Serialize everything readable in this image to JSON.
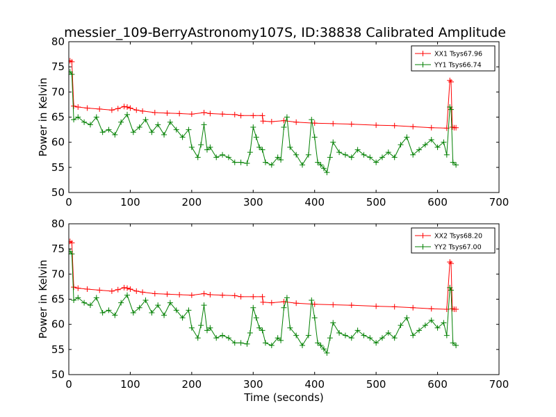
{
  "title": "messier_109-BerryAstronomy107S, ID:38838 Calibrated Amplitude",
  "colors": {
    "xx": "#ff0000",
    "yy": "#007f00",
    "axis": "#000000"
  },
  "chart_data": [
    {
      "type": "line",
      "title": "messier_109-BerryAstronomy107S, ID:38838 Calibrated Amplitude",
      "xlabel": "",
      "ylabel": "Power in Kelvin",
      "xlim": [
        0,
        700
      ],
      "ylim": [
        50,
        80
      ],
      "xticks": [
        0,
        100,
        200,
        300,
        400,
        500,
        600,
        700
      ],
      "yticks": [
        50,
        55,
        60,
        65,
        70,
        75,
        80
      ],
      "grid": false,
      "legend_position": "top-right",
      "marker": "plus",
      "series": [
        {
          "name": "XX1 Tsys67.96",
          "color": "#ff0000",
          "x": [
            2,
            5,
            8,
            15,
            30,
            50,
            70,
            80,
            90,
            95,
            100,
            110,
            120,
            140,
            160,
            180,
            200,
            220,
            230,
            250,
            270,
            280,
            300,
            315,
            316,
            330,
            350,
            370,
            400,
            430,
            460,
            500,
            530,
            560,
            590,
            615,
            620,
            622,
            624,
            627,
            630
          ],
          "values": [
            76.2,
            76.0,
            67.2,
            67.0,
            66.8,
            66.6,
            66.4,
            66.7,
            67.1,
            67.0,
            66.8,
            66.4,
            66.2,
            65.9,
            65.8,
            65.7,
            65.6,
            65.9,
            65.7,
            65.6,
            65.5,
            65.3,
            65.3,
            65.3,
            64.2,
            64.1,
            64.3,
            64.0,
            63.8,
            63.7,
            63.6,
            63.4,
            63.3,
            63.1,
            62.9,
            62.8,
            72.3,
            72.0,
            63.0,
            62.9,
            62.9
          ]
        },
        {
          "name": "YY1 Tsys66.74",
          "color": "#007f00",
          "x": [
            2,
            5,
            8,
            15,
            25,
            35,
            45,
            55,
            65,
            75,
            85,
            95,
            105,
            115,
            125,
            135,
            145,
            155,
            165,
            175,
            185,
            195,
            200,
            210,
            215,
            220,
            225,
            230,
            240,
            250,
            260,
            270,
            280,
            290,
            295,
            300,
            305,
            310,
            315,
            320,
            330,
            340,
            345,
            350,
            355,
            360,
            370,
            380,
            390,
            395,
            400,
            405,
            410,
            415,
            420,
            425,
            430,
            440,
            450,
            460,
            470,
            480,
            490,
            500,
            510,
            520,
            530,
            540,
            550,
            560,
            570,
            580,
            590,
            600,
            610,
            615,
            620,
            622,
            625,
            630
          ],
          "values": [
            74.0,
            73.5,
            64.5,
            65.0,
            64.0,
            63.5,
            65.0,
            62.0,
            62.5,
            61.5,
            64.0,
            65.5,
            62.0,
            63.0,
            64.5,
            62.0,
            63.5,
            61.5,
            64.0,
            62.5,
            61.0,
            62.5,
            59.0,
            57.0,
            59.5,
            63.5,
            58.5,
            59.0,
            57.0,
            57.5,
            57.0,
            56.0,
            56.0,
            55.8,
            58.0,
            63.0,
            61.0,
            59.0,
            58.5,
            56.0,
            55.5,
            57.0,
            56.5,
            63.0,
            65.0,
            59.0,
            57.5,
            55.5,
            57.5,
            64.5,
            61.0,
            56.0,
            55.5,
            54.8,
            54.0,
            57.0,
            60.0,
            58.0,
            57.5,
            57.0,
            58.5,
            57.5,
            57.0,
            56.0,
            57.0,
            58.0,
            57.0,
            59.5,
            61.0,
            57.5,
            58.5,
            59.5,
            60.5,
            59.0,
            60.0,
            57.5,
            67.0,
            66.5,
            56.0,
            55.5
          ]
        }
      ]
    },
    {
      "type": "line",
      "title": "",
      "xlabel": "Time (seconds)",
      "ylabel": "Power in Kelvin",
      "xlim": [
        0,
        700
      ],
      "ylim": [
        50,
        80
      ],
      "xticks": [
        0,
        100,
        200,
        300,
        400,
        500,
        600,
        700
      ],
      "yticks": [
        50,
        55,
        60,
        65,
        70,
        75,
        80
      ],
      "grid": false,
      "legend_position": "top-right",
      "marker": "plus",
      "series": [
        {
          "name": "XX2 Tsys68.20",
          "color": "#ff0000",
          "x": [
            2,
            5,
            8,
            15,
            30,
            50,
            70,
            80,
            90,
            95,
            100,
            110,
            120,
            140,
            160,
            180,
            200,
            220,
            230,
            250,
            270,
            280,
            300,
            315,
            316,
            330,
            350,
            370,
            400,
            430,
            460,
            500,
            530,
            560,
            590,
            615,
            620,
            622,
            624,
            627,
            630
          ],
          "values": [
            76.5,
            76.2,
            67.4,
            67.2,
            67.0,
            66.8,
            66.6,
            66.9,
            67.3,
            67.2,
            67.0,
            66.6,
            66.4,
            66.1,
            66.0,
            65.9,
            65.8,
            66.1,
            65.9,
            65.8,
            65.7,
            65.5,
            65.5,
            65.5,
            64.4,
            64.3,
            64.5,
            64.2,
            64.0,
            63.9,
            63.8,
            63.6,
            63.5,
            63.3,
            63.1,
            63.0,
            72.4,
            72.1,
            63.1,
            63.0,
            63.0
          ]
        },
        {
          "name": "YY2 Tsys67.00",
          "color": "#007f00",
          "x": [
            2,
            5,
            8,
            15,
            25,
            35,
            45,
            55,
            65,
            75,
            85,
            95,
            105,
            115,
            125,
            135,
            145,
            155,
            165,
            175,
            185,
            195,
            200,
            210,
            215,
            220,
            225,
            230,
            240,
            250,
            260,
            270,
            280,
            290,
            295,
            300,
            305,
            310,
            315,
            320,
            330,
            340,
            345,
            350,
            355,
            360,
            370,
            380,
            390,
            395,
            400,
            405,
            410,
            415,
            420,
            425,
            430,
            440,
            450,
            460,
            470,
            480,
            490,
            500,
            510,
            520,
            530,
            540,
            550,
            560,
            570,
            580,
            590,
            600,
            610,
            615,
            620,
            622,
            625,
            630
          ],
          "values": [
            74.5,
            74.0,
            64.8,
            65.3,
            64.3,
            63.8,
            65.3,
            62.3,
            62.8,
            61.8,
            64.3,
            65.8,
            62.3,
            63.3,
            64.8,
            62.3,
            63.8,
            61.8,
            64.3,
            62.8,
            61.3,
            62.8,
            59.3,
            57.3,
            59.8,
            63.8,
            58.8,
            59.3,
            57.3,
            57.8,
            57.3,
            56.3,
            56.3,
            56.1,
            58.3,
            63.3,
            61.3,
            59.3,
            58.8,
            56.3,
            55.8,
            57.3,
            56.8,
            63.3,
            65.3,
            59.3,
            57.8,
            55.8,
            57.8,
            64.8,
            61.3,
            56.3,
            55.8,
            55.1,
            54.3,
            57.3,
            60.3,
            58.3,
            57.8,
            57.3,
            58.8,
            57.8,
            57.3,
            56.3,
            57.3,
            58.3,
            57.3,
            59.8,
            61.3,
            57.8,
            58.8,
            59.8,
            60.8,
            59.3,
            60.3,
            57.8,
            67.3,
            66.8,
            56.3,
            55.8
          ]
        }
      ]
    }
  ]
}
